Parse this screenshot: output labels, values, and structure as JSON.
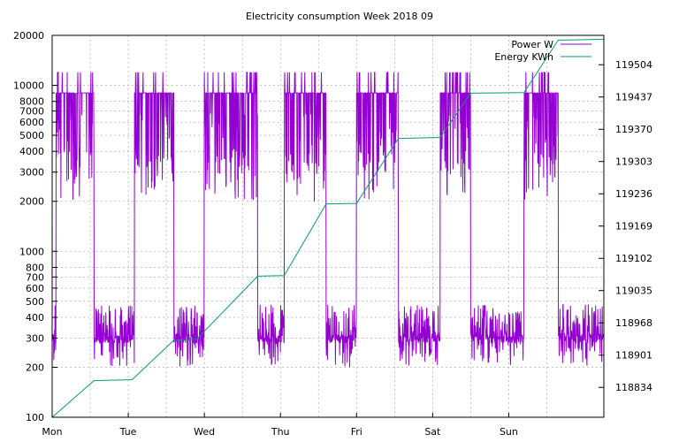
{
  "chart_data": {
    "type": "line",
    "title": "Electricity consumption Week 2018 09",
    "legend_position": "top-right",
    "grid": true,
    "x_axis": {
      "tick_labels": [
        "Mon",
        "Tue",
        "Wed",
        "Thu",
        "Fri",
        "Sat",
        "Sun"
      ],
      "range_days": [
        0,
        7.25
      ]
    },
    "y_axis_left": {
      "scale": "log",
      "range": [
        100,
        20000
      ],
      "tick_labels": [
        "100",
        "200",
        "300",
        "400",
        "500",
        "600",
        "700",
        "800",
        "1000",
        "2000",
        "3000",
        "4000",
        "5000",
        "6000",
        "7000",
        "8000",
        "10000",
        "20000"
      ]
    },
    "y_axis_right": {
      "scale": "linear",
      "range": [
        118772,
        119565
      ],
      "tick_labels": [
        "118834",
        "118901",
        "118968",
        "119035",
        "119102",
        "119169",
        "119236",
        "119303",
        "119370",
        "119437",
        "119504"
      ]
    },
    "series": [
      {
        "name": "Power W",
        "color": "#9400d3",
        "axis": "left",
        "active_periods": [
          {
            "day": 0,
            "start": 0.05,
            "end": 0.55
          },
          {
            "day": 1,
            "start": 0.08,
            "end": 0.6
          },
          {
            "day": 2,
            "start": 0.0,
            "end": 0.7
          },
          {
            "day": 3,
            "start": 0.05,
            "end": 0.6
          },
          {
            "day": 4,
            "start": 0.0,
            "end": 0.55
          },
          {
            "day": 5,
            "start": 0.1,
            "end": 0.5
          },
          {
            "day": 6,
            "start": 0.2,
            "end": 0.65
          }
        ],
        "high_level_w": 9000,
        "peak_level_w": 12000,
        "low_dip_w": 2000,
        "night_level_w": [
          200,
          480
        ]
      },
      {
        "name": "Energy KWh",
        "color": "#009e73",
        "axis": "right",
        "points": [
          [
            0.0,
            118772
          ],
          [
            0.55,
            118848
          ],
          [
            1.05,
            118850
          ],
          [
            1.6,
            118932
          ],
          [
            1.9,
            118934
          ],
          [
            2.7,
            119065
          ],
          [
            3.05,
            119066
          ],
          [
            3.6,
            119215
          ],
          [
            4.0,
            119216
          ],
          [
            4.55,
            119351
          ],
          [
            5.1,
            119353
          ],
          [
            5.5,
            119445
          ],
          [
            6.2,
            119446
          ],
          [
            6.65,
            119555
          ],
          [
            7.25,
            119557
          ]
        ]
      }
    ]
  }
}
